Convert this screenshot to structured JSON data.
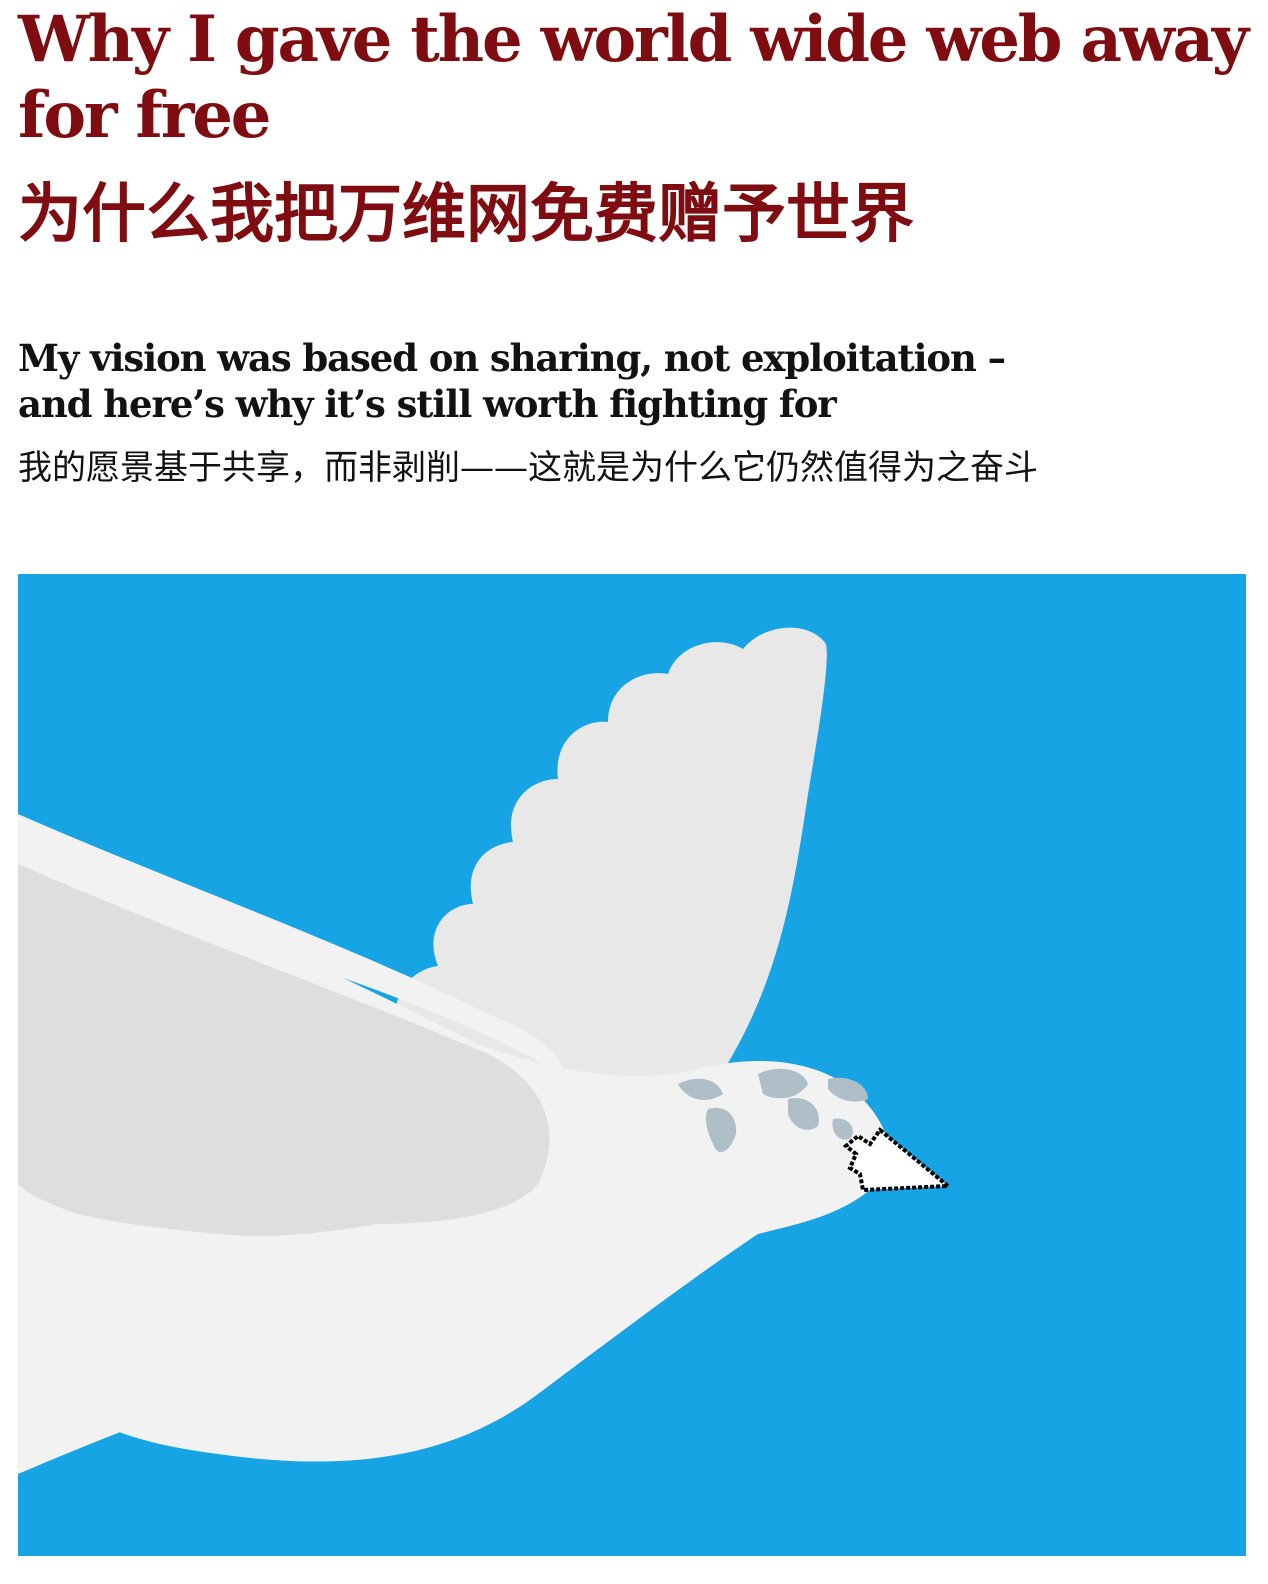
{
  "article": {
    "headline_en": "Why I gave the world wide web away for free",
    "headline_zh": "为什么我把万维网免费赠予世界",
    "standfirst_en": "My vision was based on sharing, not exploitation – and here’s why it’s still worth fighting for",
    "standfirst_zh": "我的愿景基于共享，而非剥削——这就是为什么它仍然值得为之奋斗"
  },
  "hero_image": {
    "subject": "dove-globe-cursor-illustration",
    "background_color": "#17a4e4",
    "bird_color": "#f2f2f2",
    "shadow_color": "#dedede",
    "globe_color": "#aebfc8"
  },
  "colors": {
    "headline": "#7f0c10",
    "body": "#121212"
  }
}
